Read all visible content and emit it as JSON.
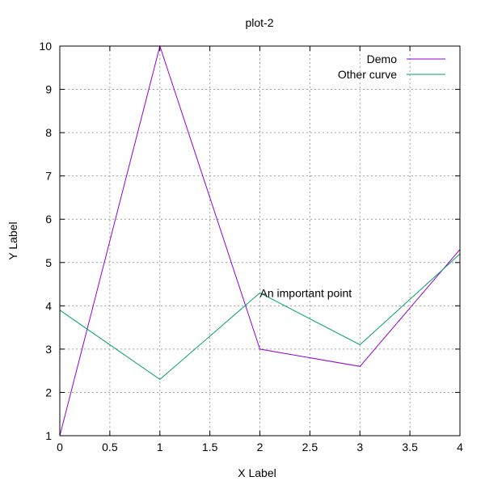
{
  "chart_data": {
    "type": "line",
    "title": "plot-2",
    "xlabel": "X Label",
    "ylabel": "Y Label",
    "xlim": [
      0,
      4
    ],
    "ylim": [
      1,
      10
    ],
    "xticks": [
      "0",
      "0.5",
      "1",
      "1.5",
      "2",
      "2.5",
      "3",
      "3.5",
      "4"
    ],
    "yticks": [
      "1",
      "2",
      "3",
      "4",
      "5",
      "6",
      "7",
      "8",
      "9",
      "10"
    ],
    "grid": true,
    "legend_position": "top-right",
    "series": [
      {
        "name": "Demo",
        "color": "#9400d3",
        "x": [
          0,
          1,
          2,
          3,
          4
        ],
        "y": [
          1,
          10,
          3,
          2.6,
          5.3
        ]
      },
      {
        "name": "Other curve",
        "color": "#009e73",
        "x": [
          0,
          1,
          2,
          3,
          4
        ],
        "y": [
          3.9,
          2.3,
          4.3,
          3.1,
          5.2
        ]
      }
    ],
    "annotations": [
      {
        "text": "An important point",
        "x": 2,
        "y": 4.3
      }
    ]
  }
}
